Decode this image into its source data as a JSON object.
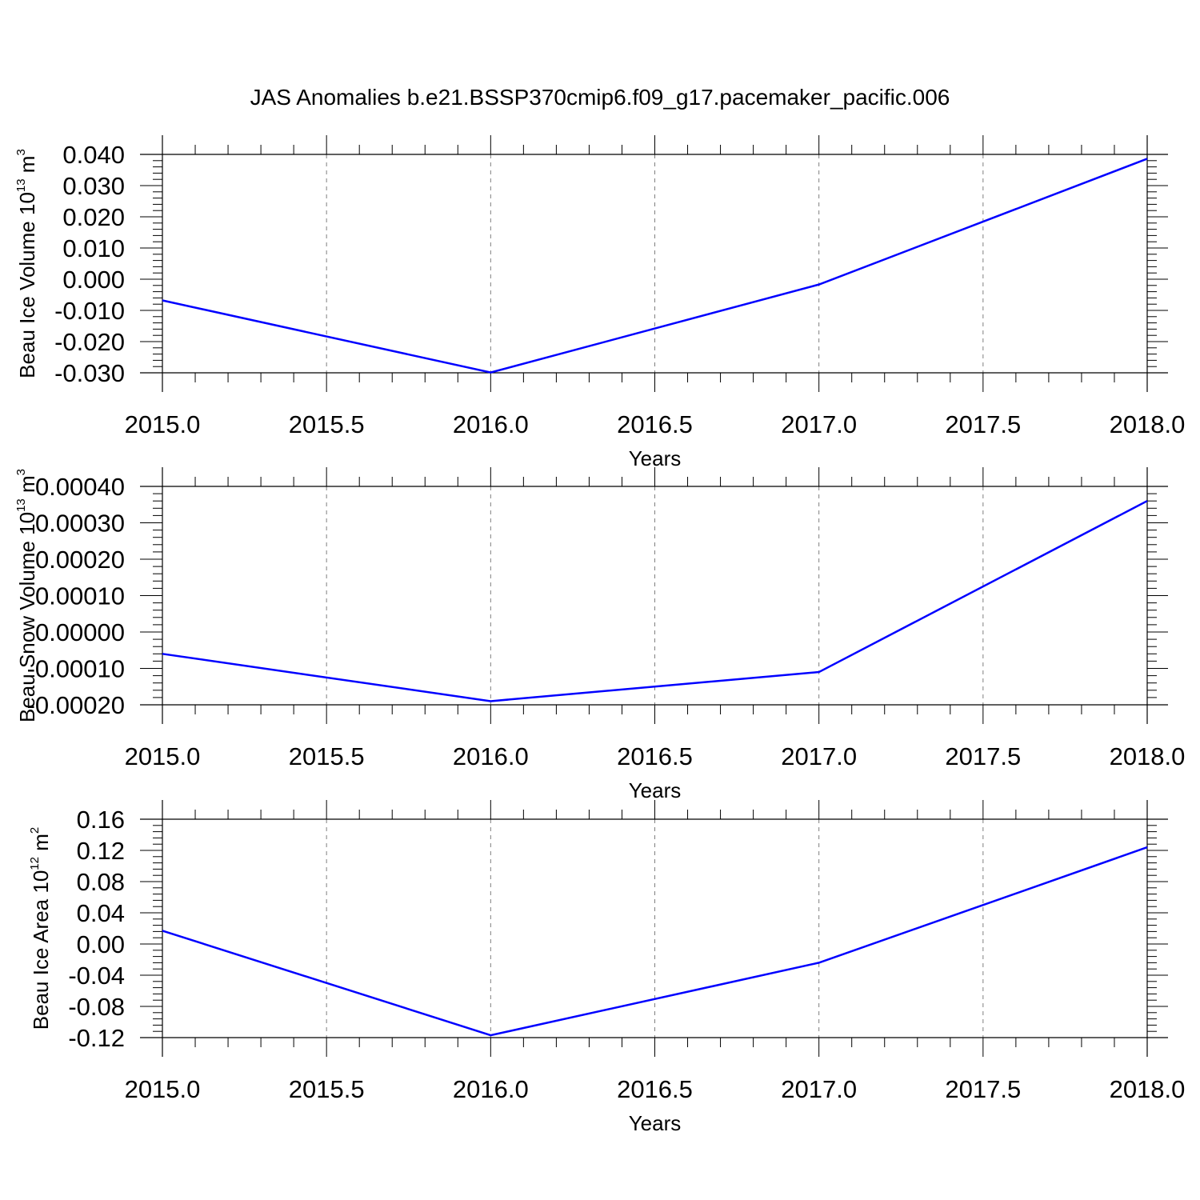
{
  "title": "JAS Anomalies b.e21.BSSP370cmip6.f09_g17.pacemaker_pacific.006",
  "colors": {
    "line": "#0000ff",
    "axis": "#000000",
    "grid": "#7f7f7f"
  },
  "chart_data": [
    {
      "type": "line",
      "xlabel": "Years",
      "ylabel": {
        "base": "Beau Ice Volume 10",
        "exp": "13",
        "unit": " m",
        "unit_exp": "3"
      },
      "x": [
        2015.0,
        2016.0,
        2017.0,
        2018.0
      ],
      "series": [
        {
          "values": [
            -0.0068,
            -0.0299,
            -0.0017,
            0.0386
          ]
        }
      ],
      "xlim": [
        2015.0,
        2018.0
      ],
      "xticks": [
        "2015.0",
        "2015.5",
        "2016.0",
        "2016.5",
        "2017.0",
        "2017.5",
        "2018.0"
      ],
      "ylim": [
        -0.03,
        0.04
      ],
      "yticks": [
        "-0.030",
        "-0.020",
        "-0.010",
        "0.000",
        "0.010",
        "0.020",
        "0.030",
        "0.040"
      ],
      "grid": "vertical-dashed"
    },
    {
      "type": "line",
      "xlabel": "Years",
      "ylabel": {
        "base": "Beau Snow Volume 10",
        "exp": "13",
        "unit": " m",
        "unit_exp": "3"
      },
      "x": [
        2015.0,
        2016.0,
        2017.0,
        2018.0
      ],
      "series": [
        {
          "values": [
            -6e-05,
            -0.00019,
            -0.00011,
            0.00036
          ]
        }
      ],
      "xlim": [
        2015.0,
        2018.0
      ],
      "xticks": [
        "2015.0",
        "2015.5",
        "2016.0",
        "2016.5",
        "2017.0",
        "2017.5",
        "2018.0"
      ],
      "ylim": [
        -0.0002,
        0.0004
      ],
      "yticks": [
        "-0.00020",
        "-0.00010",
        "0.00000",
        "0.00010",
        "0.00020",
        "0.00030",
        "0.00040"
      ],
      "grid": "vertical-dashed"
    },
    {
      "type": "line",
      "xlabel": "Years",
      "ylabel": {
        "base": "Beau Ice Area 10",
        "exp": "12",
        "unit": " m",
        "unit_exp": "2"
      },
      "x": [
        2015.0,
        2016.0,
        2017.0,
        2018.0
      ],
      "series": [
        {
          "values": [
            0.017,
            -0.117,
            -0.024,
            0.124
          ]
        }
      ],
      "xlim": [
        2015.0,
        2018.0
      ],
      "xticks": [
        "2015.0",
        "2015.5",
        "2016.0",
        "2016.5",
        "2017.0",
        "2017.5",
        "2018.0"
      ],
      "ylim": [
        -0.12,
        0.16
      ],
      "yticks": [
        "-0.12",
        "-0.08",
        "-0.04",
        "0.00",
        "0.04",
        "0.08",
        "0.12",
        "0.16"
      ],
      "grid": "vertical-dashed"
    }
  ]
}
